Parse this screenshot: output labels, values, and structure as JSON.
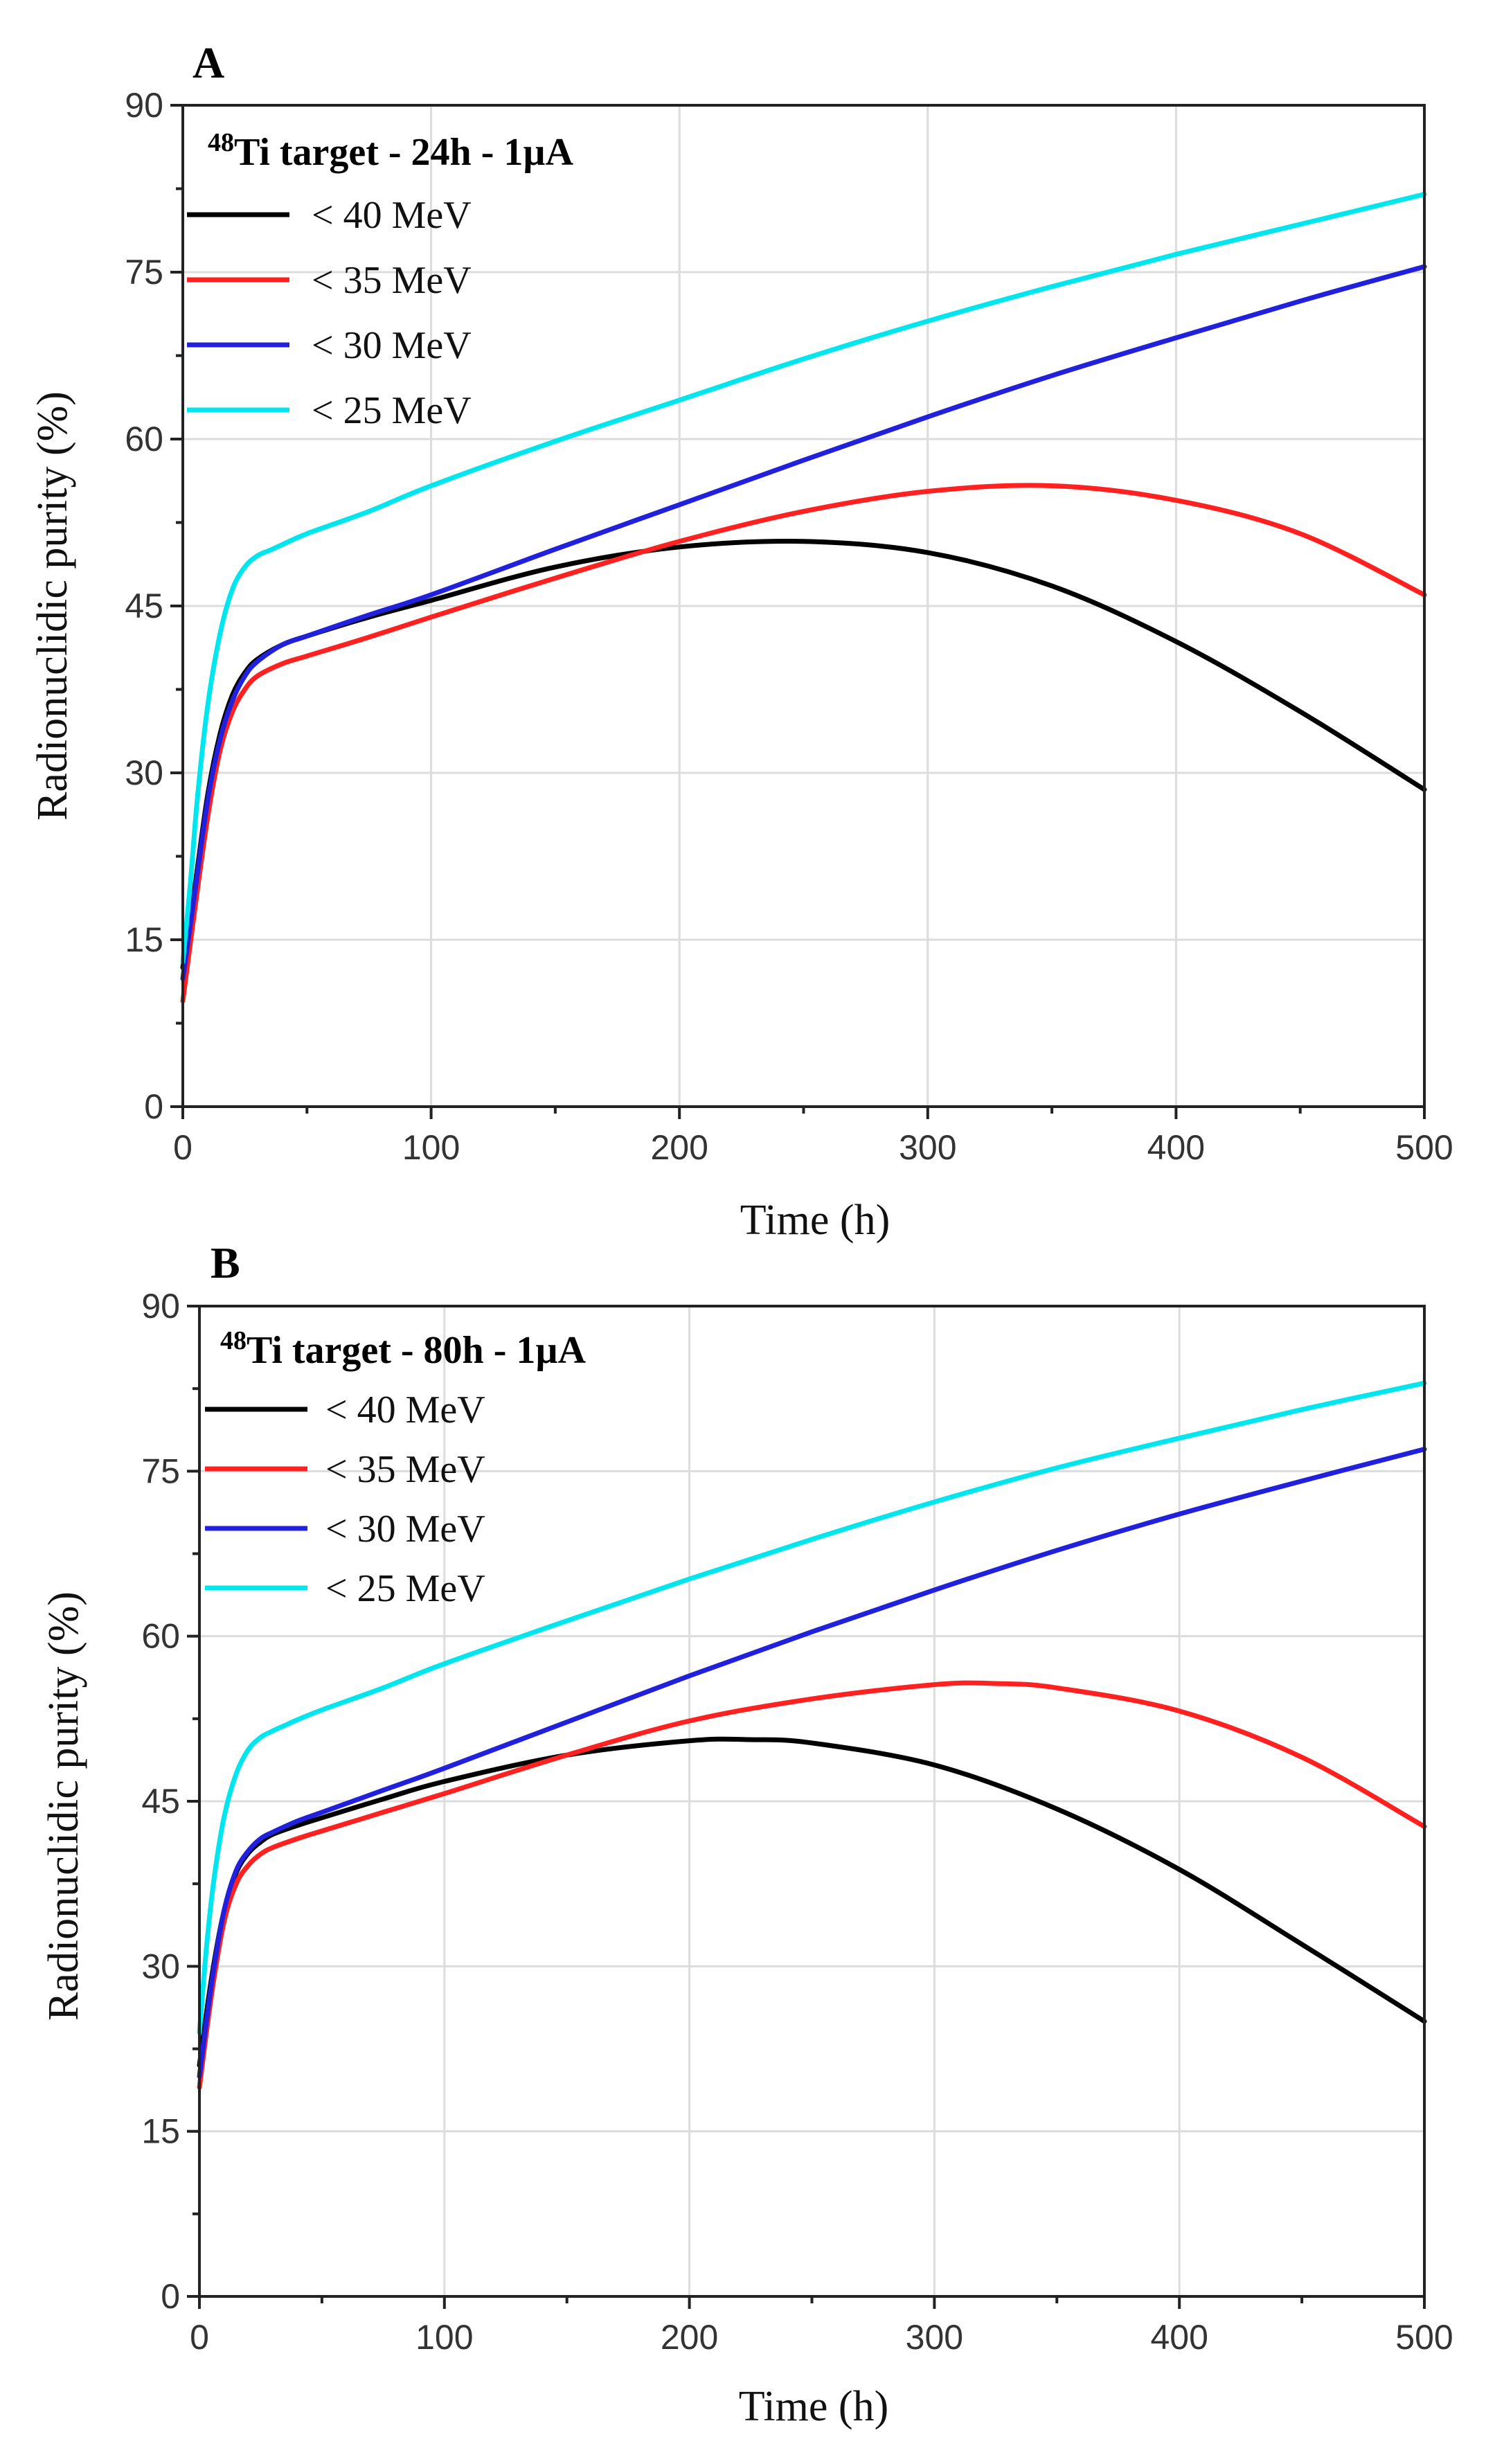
{
  "chart_data": [
    {
      "type": "line",
      "panel_label": "A",
      "legend_title": {
        "superscript": "48",
        "text": "Ti target - 24h - 1µA"
      },
      "xlabel": "Time (h)",
      "ylabel": "Radionuclidic  purity  (%)",
      "xlim": [
        0,
        500
      ],
      "ylim": [
        0,
        90
      ],
      "xticks": [
        0,
        100,
        200,
        300,
        400,
        500
      ],
      "yticks": [
        0,
        15,
        30,
        45,
        60,
        75,
        90
      ],
      "grid": true,
      "legend_position": "top-left",
      "series": [
        {
          "name": "< 40 MeV",
          "color": "#000000",
          "x": [
            0,
            5,
            10,
            15,
            20,
            25,
            30,
            40,
            50,
            75,
            100,
            150,
            200,
            250,
            300,
            350,
            400,
            450,
            500
          ],
          "y": [
            12.5,
            20,
            28,
            33.5,
            37,
            39,
            40.2,
            41.5,
            42.3,
            44,
            45.5,
            48.5,
            50.3,
            50.8,
            49.8,
            46.8,
            41.8,
            35.5,
            28.5
          ]
        },
        {
          "name": "< 35 MeV",
          "color": "#ff2020",
          "x": [
            0,
            5,
            10,
            15,
            20,
            25,
            30,
            40,
            50,
            75,
            100,
            150,
            200,
            250,
            300,
            350,
            400,
            450,
            500
          ],
          "y": [
            9.5,
            18,
            26,
            32,
            35.5,
            37.5,
            38.7,
            39.8,
            40.5,
            42.2,
            44,
            47.5,
            50.8,
            53.5,
            55.3,
            55.8,
            54.5,
            51.5,
            46
          ]
        },
        {
          "name": "< 30 MeV",
          "color": "#2020dd",
          "x": [
            0,
            5,
            10,
            15,
            20,
            25,
            30,
            40,
            50,
            75,
            100,
            150,
            200,
            250,
            300,
            350,
            400,
            450,
            500
          ],
          "y": [
            11.5,
            19.5,
            27.5,
            33,
            36.5,
            38.7,
            40,
            41.5,
            42.3,
            44.2,
            46,
            50.1,
            54.1,
            58.1,
            62,
            65.7,
            69.1,
            72.4,
            75.5
          ]
        },
        {
          "name": "< 25 MeV",
          "color": "#00e6ee",
          "x": [
            0,
            3,
            6,
            10,
            15,
            20,
            25,
            30,
            35,
            40,
            50,
            75,
            100,
            150,
            200,
            250,
            300,
            350,
            400,
            450,
            500
          ],
          "y": [
            13,
            20,
            28,
            36,
            42.5,
            46.5,
            48.5,
            49.5,
            50,
            50.5,
            51.5,
            53.5,
            55.8,
            59.8,
            63.5,
            67.2,
            70.6,
            73.7,
            76.6,
            79.3,
            82
          ]
        }
      ]
    },
    {
      "type": "line",
      "panel_label": "B",
      "legend_title": {
        "superscript": "48",
        "text": "Ti target - 80h - 1µA"
      },
      "xlabel": "Time (h)",
      "ylabel": "Radionuclidic  purity  (%)",
      "xlim": [
        0,
        500
      ],
      "ylim": [
        0,
        90
      ],
      "xticks": [
        0,
        100,
        200,
        300,
        400,
        500
      ],
      "yticks": [
        0,
        15,
        30,
        45,
        60,
        75,
        90
      ],
      "grid": true,
      "legend_position": "top-left",
      "series": [
        {
          "name": "< 40 MeV",
          "color": "#000000",
          "x": [
            0,
            5,
            10,
            15,
            20,
            25,
            30,
            40,
            50,
            75,
            100,
            150,
            200,
            225,
            250,
            300,
            350,
            400,
            450,
            500
          ],
          "y": [
            21,
            29,
            35,
            38.5,
            40.3,
            41.3,
            42,
            42.8,
            43.5,
            45.2,
            46.8,
            49.2,
            50.5,
            50.6,
            50.3,
            48.3,
            44.3,
            38.8,
            32,
            25
          ]
        },
        {
          "name": "< 35 MeV",
          "color": "#ff2020",
          "x": [
            0,
            5,
            10,
            15,
            20,
            25,
            30,
            40,
            50,
            75,
            100,
            150,
            200,
            250,
            300,
            325,
            350,
            400,
            450,
            500
          ],
          "y": [
            19,
            27.5,
            34,
            37.5,
            39.2,
            40.2,
            40.8,
            41.6,
            42.3,
            44,
            45.7,
            49.2,
            52.3,
            54.3,
            55.6,
            55.7,
            55.3,
            53.2,
            49,
            42.7
          ]
        },
        {
          "name": "< 30 MeV",
          "color": "#2020dd",
          "x": [
            0,
            5,
            10,
            15,
            20,
            25,
            30,
            40,
            50,
            75,
            100,
            150,
            200,
            250,
            300,
            350,
            400,
            450,
            500
          ],
          "y": [
            20,
            28.5,
            35,
            38.7,
            40.5,
            41.6,
            42.2,
            43.2,
            44,
            46,
            48,
            52.2,
            56.4,
            60.4,
            64.2,
            67.8,
            71.1,
            74.1,
            77
          ]
        },
        {
          "name": "< 25 MeV",
          "color": "#00e6ee",
          "x": [
            0,
            3,
            6,
            10,
            15,
            20,
            25,
            30,
            35,
            40,
            50,
            75,
            100,
            150,
            200,
            250,
            300,
            350,
            400,
            450,
            500
          ],
          "y": [
            24,
            32,
            38,
            43.5,
            47.5,
            49.7,
            50.8,
            51.4,
            51.9,
            52.4,
            53.3,
            55.3,
            57.5,
            61.4,
            65.2,
            68.8,
            72.2,
            75.3,
            78,
            80.6,
            83
          ]
        }
      ]
    }
  ]
}
